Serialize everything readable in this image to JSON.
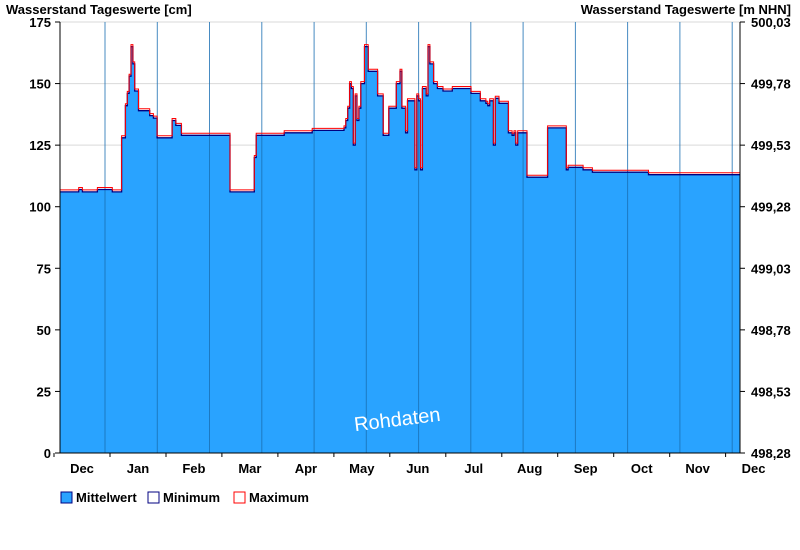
{
  "chart_data": {
    "type": "area",
    "left_axis_title": "Wasserstand Tageswerte [cm]",
    "right_axis_title": "Wasserstand Tageswerte [m NHN]",
    "ylim": [
      0,
      175
    ],
    "y_ticks": [
      0,
      25,
      50,
      75,
      100,
      125,
      150,
      175
    ],
    "right_ticks": [
      "498,28",
      "498,53",
      "498,78",
      "499,03",
      "499,28",
      "499,53",
      "499,78",
      "500,03"
    ],
    "month_labels": [
      "Dec",
      "Jan",
      "Feb",
      "Mar",
      "Apr",
      "May",
      "Jun",
      "Jul",
      "Aug",
      "Sep",
      "Oct",
      "Nov",
      "Dec"
    ],
    "grid": true,
    "legend_position": "bottom-left",
    "watermark": "Rohdaten",
    "colors": {
      "mean_fill": "#29a3ff",
      "minimum": "#000080",
      "maximum": "#ff0000"
    },
    "series": [
      {
        "name": "Mittelwert",
        "x": [
          0,
          8,
          10,
          12,
          15,
          18,
          20,
          25,
          28,
          31,
          33,
          35,
          36,
          37,
          38,
          39,
          40,
          42,
          45,
          47,
          48,
          50,
          52,
          55,
          59,
          60,
          62,
          65,
          70,
          75,
          90,
          91,
          94,
          100,
          103,
          104,
          105,
          110,
          115,
          120,
          125,
          130,
          135,
          140,
          145,
          150,
          152,
          153,
          154,
          155,
          156,
          157,
          158,
          159,
          160,
          161,
          163,
          165,
          170,
          173,
          174,
          175,
          176,
          180,
          182,
          183,
          185,
          186,
          188,
          190,
          191,
          192,
          193,
          194,
          196,
          197,
          198,
          200,
          202,
          205,
          210,
          215,
          220,
          225,
          226,
          228,
          229,
          230,
          232,
          233,
          235,
          240,
          242,
          243,
          244,
          245,
          250,
          255,
          257,
          260,
          261,
          265,
          270,
          271,
          272,
          275,
          280,
          285,
          290,
          295,
          300,
          305,
          310,
          315,
          320,
          325,
          330,
          335,
          340,
          345,
          350,
          355,
          360,
          364
        ],
        "values": [
          106,
          106,
          107,
          106,
          106,
          106,
          107,
          107,
          106,
          106,
          128,
          141,
          146,
          153,
          165,
          158,
          147,
          139,
          139,
          139,
          137,
          136,
          128,
          128,
          128,
          135,
          133,
          129,
          129,
          129,
          129,
          106,
          106,
          106,
          106,
          120,
          129,
          129,
          129,
          130,
          130,
          130,
          131,
          131,
          131,
          131,
          132,
          135,
          140,
          150,
          148,
          125,
          145,
          135,
          140,
          150,
          165,
          155,
          145,
          129,
          129,
          129,
          140,
          150,
          155,
          140,
          130,
          143,
          143,
          115,
          145,
          143,
          115,
          148,
          145,
          165,
          158,
          150,
          148,
          147,
          148,
          148,
          146,
          143,
          143,
          142,
          141,
          143,
          125,
          144,
          142,
          130,
          129,
          130,
          125,
          130,
          112,
          112,
          112,
          112,
          132,
          132,
          132,
          115,
          116,
          116,
          115,
          114,
          114,
          114,
          114,
          114,
          114,
          113,
          113,
          113,
          113,
          113,
          113,
          113,
          113,
          113,
          113,
          113
        ]
      },
      {
        "name": "Minimum"
      },
      {
        "name": "Maximum"
      }
    ]
  }
}
